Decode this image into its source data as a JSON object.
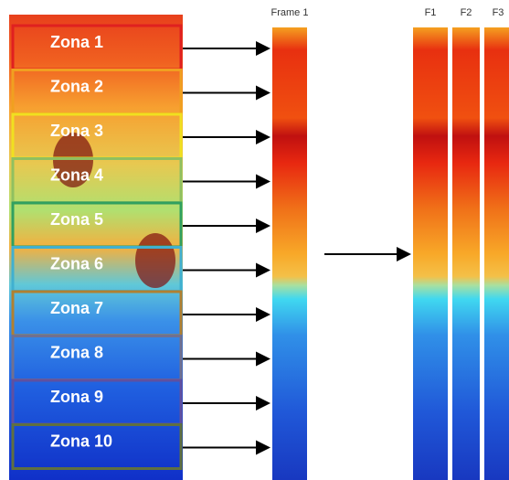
{
  "zones": [
    "Zona 1",
    "Zona 2",
    "Zona 3",
    "Zona 4",
    "Zona 5",
    "Zona 6",
    "Zona 7",
    "Zona 8",
    "Zona 9",
    "Zona 10"
  ],
  "frame_label": "Frame 1",
  "strip_labels": [
    "F1",
    "F2",
    "F3"
  ]
}
